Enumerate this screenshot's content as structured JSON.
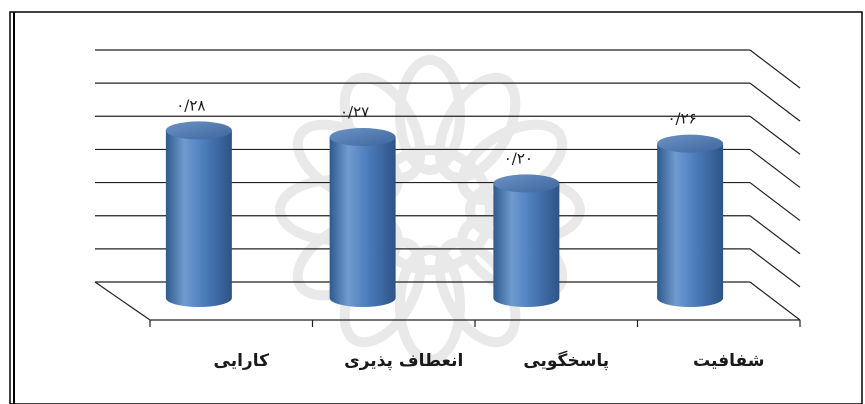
{
  "chart_data": {
    "type": "bar",
    "categories": [
      "شفافیت",
      "پاسخگویی",
      "انعطاف پذیری",
      "کارایی"
    ],
    "values": [
      0.26,
      0.2,
      0.27,
      0.28
    ],
    "data_labels": [
      "۰/۲۶",
      "۰/۲۰",
      "۰/۲۷",
      "۰/۲۸"
    ],
    "ylim": [
      0,
      0.35
    ],
    "grid": true,
    "legend": "none",
    "bar_color": "#4f81bd",
    "bar_shape": "cylinder"
  }
}
